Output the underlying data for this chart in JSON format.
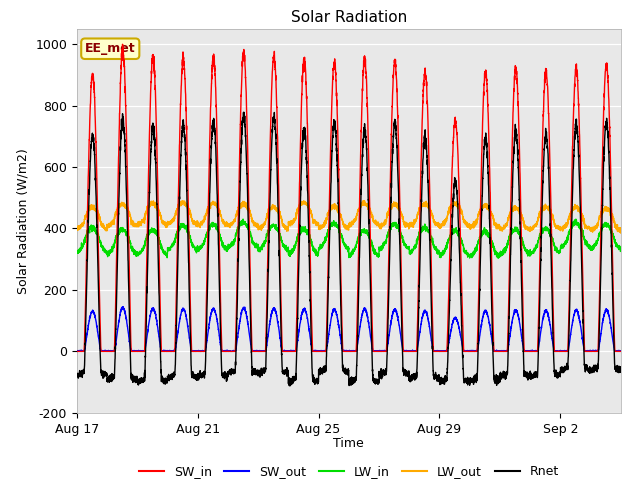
{
  "title": "Solar Radiation",
  "xlabel": "Time",
  "ylabel": "Solar Radiation (W/m2)",
  "ylim": [
    -200,
    1050
  ],
  "background_color": "#e8e8e8",
  "figure_bg": "#ffffff",
  "annotation_label": "EE_met",
  "x_tick_labels": [
    "Aug 17",
    "Aug 21",
    "Aug 25",
    "Aug 29",
    "Sep 2"
  ],
  "x_tick_positions": [
    0,
    4,
    8,
    12,
    16
  ],
  "yticks": [
    -200,
    0,
    200,
    400,
    600,
    800,
    1000
  ],
  "series": {
    "SW_in": {
      "color": "#ff0000",
      "lw": 1.0
    },
    "SW_out": {
      "color": "#0000ff",
      "lw": 1.0
    },
    "LW_in": {
      "color": "#00dd00",
      "lw": 1.0
    },
    "LW_out": {
      "color": "#ffaa00",
      "lw": 1.0
    },
    "Rnet": {
      "color": "#000000",
      "lw": 1.0
    }
  },
  "legend_entries": [
    "SW_in",
    "SW_out",
    "LW_in",
    "LW_out",
    "Rnet"
  ],
  "legend_colors": [
    "#ff0000",
    "#0000ff",
    "#00dd00",
    "#ffaa00",
    "#000000"
  ]
}
